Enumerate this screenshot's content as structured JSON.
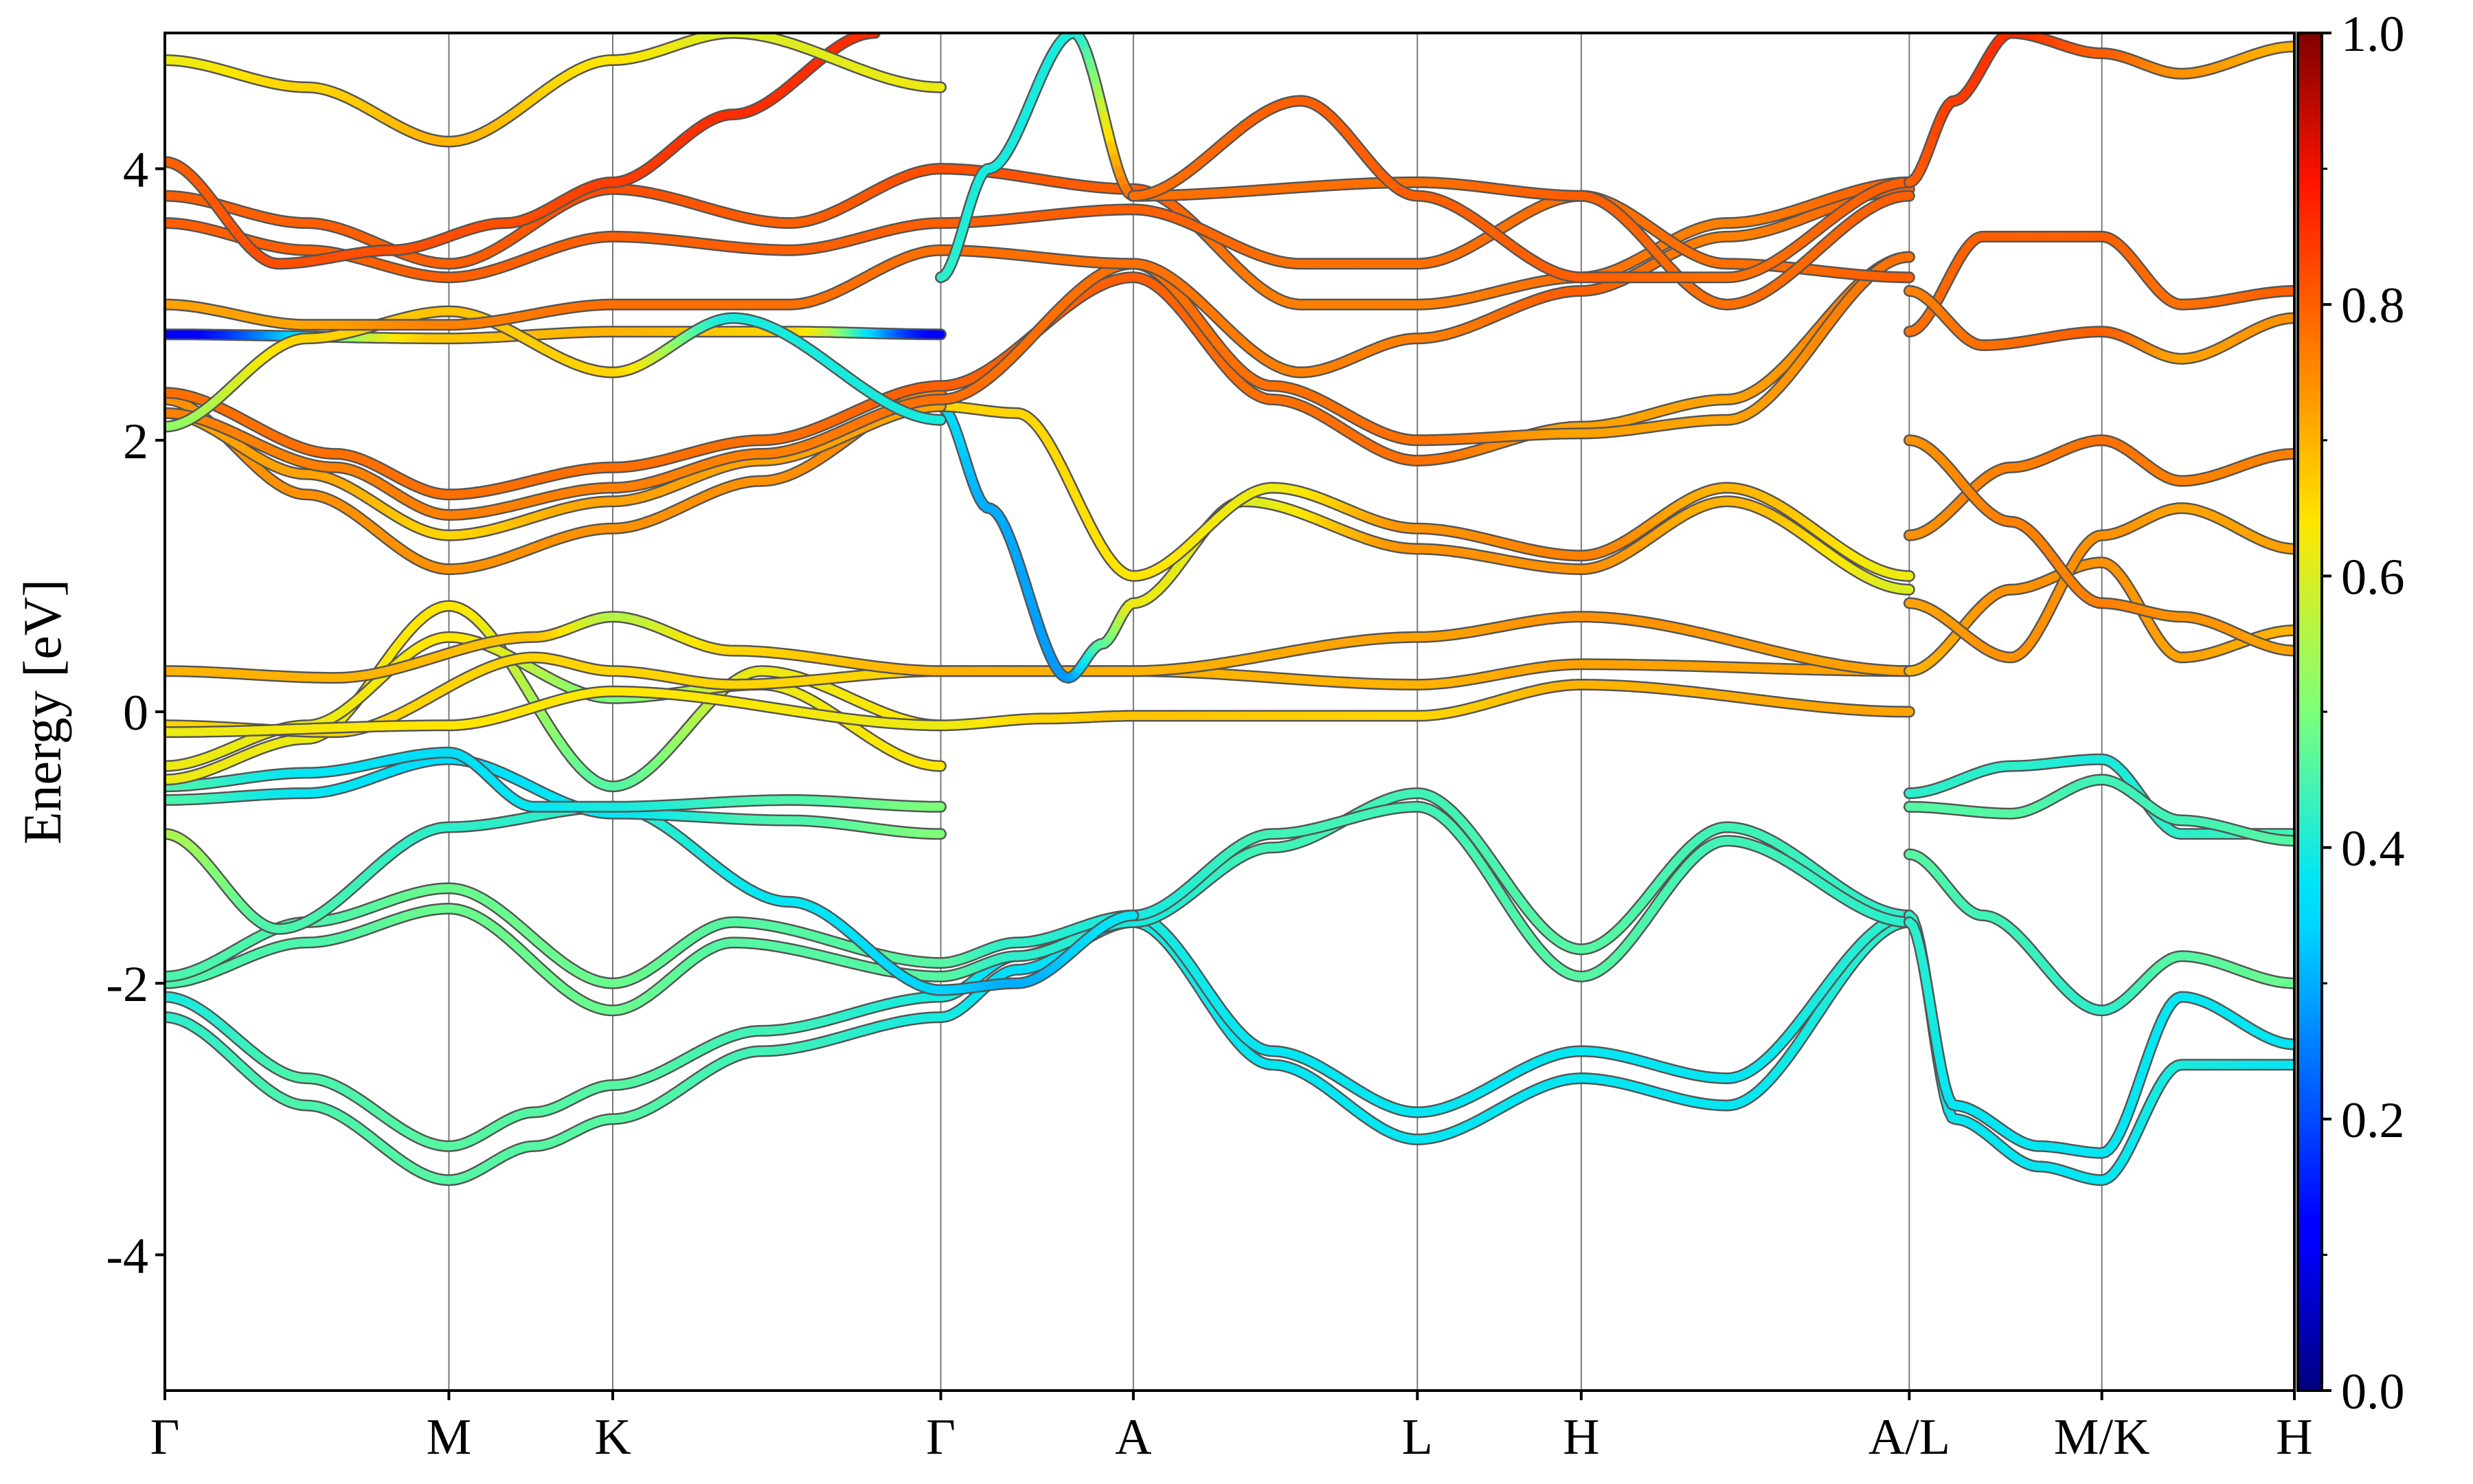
{
  "chart_data": {
    "type": "line",
    "ylabel": "Energy [eV]",
    "ylim": [
      -5,
      5
    ],
    "y_ticks": [
      -4,
      -2,
      0,
      2,
      4
    ],
    "y_tick_labels": [
      "-4",
      "-2",
      "0",
      "2",
      "4"
    ],
    "kpath": [
      {
        "label": "Γ",
        "x": 0.0
      },
      {
        "label": "M",
        "x": 1.0
      },
      {
        "label": "K",
        "x": 1.577
      },
      {
        "label": "Γ",
        "x": 2.732
      },
      {
        "label": "A",
        "x": 3.41
      },
      {
        "label": "L",
        "x": 4.41
      },
      {
        "label": "H",
        "x": 4.987
      },
      {
        "label": "A/L",
        "x": 6.142
      },
      {
        "label": "M/K",
        "x": 6.82
      },
      {
        "label": "H",
        "x": 7.498
      }
    ],
    "colorbar": {
      "colormap": "jet",
      "range": [
        0.0,
        1.0
      ],
      "ticks": [
        0.0,
        0.2,
        0.4,
        0.6,
        0.8,
        1.0
      ],
      "tick_labels": [
        "0.0",
        "0.2",
        "0.4",
        "0.6",
        "0.8",
        "1.0"
      ]
    },
    "grid": false,
    "bands": [
      {
        "x": [
          0.0,
          0.5,
          1.0,
          1.3,
          1.577,
          2.1,
          2.732,
          3.0,
          3.41,
          3.9,
          4.41,
          4.987,
          5.5,
          6.142
        ],
        "y": [
          -2.25,
          -2.9,
          -3.45,
          -3.2,
          -3.0,
          -2.5,
          -2.25,
          -1.9,
          -1.55,
          -2.6,
          -3.15,
          -2.7,
          -2.9,
          -1.55
        ],
        "w": [
          0.42,
          0.45,
          0.46,
          0.46,
          0.46,
          0.44,
          0.4,
          0.36,
          0.4,
          0.38,
          0.38,
          0.38,
          0.38,
          0.42
        ]
      },
      {
        "x": [
          0.0,
          0.5,
          1.0,
          1.3,
          1.577,
          2.1,
          2.732,
          3.0,
          3.41,
          3.9,
          4.41,
          4.987,
          5.5,
          6.142
        ],
        "y": [
          -2.1,
          -2.7,
          -3.2,
          -2.95,
          -2.75,
          -2.35,
          -2.1,
          -1.8,
          -1.5,
          -2.5,
          -2.95,
          -2.5,
          -2.7,
          -1.5
        ],
        "w": [
          0.4,
          0.45,
          0.46,
          0.46,
          0.46,
          0.44,
          0.4,
          0.36,
          0.4,
          0.38,
          0.38,
          0.38,
          0.38,
          0.42
        ]
      },
      {
        "x": [
          0.0,
          0.5,
          1.0,
          1.577,
          2.0,
          2.732,
          3.0,
          3.41,
          3.9,
          4.41,
          4.987,
          5.5,
          6.142
        ],
        "y": [
          -2.0,
          -1.7,
          -1.45,
          -2.2,
          -1.7,
          -1.95,
          -1.8,
          -1.55,
          -1.0,
          -0.6,
          -1.75,
          -0.85,
          -1.5
        ],
        "w": [
          0.45,
          0.45,
          0.48,
          0.48,
          0.46,
          0.46,
          0.42,
          0.4,
          0.44,
          0.44,
          0.46,
          0.44,
          0.42
        ]
      },
      {
        "x": [
          0.0,
          0.5,
          1.0,
          1.577,
          2.0,
          2.732,
          3.0,
          3.41,
          3.9,
          4.41,
          4.987,
          5.5,
          6.142
        ],
        "y": [
          -1.95,
          -1.55,
          -1.3,
          -2.0,
          -1.55,
          -1.85,
          -1.7,
          -1.5,
          -0.9,
          -0.7,
          -1.95,
          -0.95,
          -1.55
        ],
        "w": [
          0.45,
          0.45,
          0.48,
          0.48,
          0.46,
          0.46,
          0.42,
          0.4,
          0.44,
          0.44,
          0.46,
          0.44,
          0.42
        ]
      },
      {
        "x": [
          0.0,
          0.4,
          1.0,
          1.577,
          2.2,
          2.732,
          3.0,
          3.41
        ],
        "y": [
          -0.9,
          -1.6,
          -0.85,
          -0.7,
          -1.4,
          -2.05,
          -2.0,
          -1.5
        ],
        "w": [
          0.55,
          0.45,
          0.42,
          0.42,
          0.38,
          0.34,
          0.3,
          0.38
        ]
      },
      {
        "x": [
          0.0,
          0.5,
          1.0,
          1.577,
          2.2,
          2.732
        ],
        "y": [
          -0.65,
          -0.6,
          -0.35,
          -0.75,
          -0.8,
          -0.9
        ],
        "w": [
          0.45,
          0.38,
          0.36,
          0.38,
          0.45,
          0.5
        ]
      },
      {
        "x": [
          0.0,
          0.5,
          1.0,
          1.3,
          1.577,
          2.2,
          2.732
        ],
        "y": [
          -0.55,
          -0.45,
          -0.3,
          -0.7,
          -0.7,
          -0.65,
          -0.7
        ],
        "w": [
          0.45,
          0.38,
          0.36,
          0.38,
          0.4,
          0.45,
          0.5
        ]
      },
      {
        "x": [
          0.0,
          0.5,
          1.0,
          1.577,
          2.1,
          2.732
        ],
        "y": [
          -0.5,
          -0.2,
          0.78,
          -0.55,
          0.3,
          -0.1
        ],
        "w": [
          0.62,
          0.62,
          0.64,
          0.46,
          0.62,
          0.64
        ]
      },
      {
        "x": [
          0.0,
          0.5,
          1.0,
          1.577,
          2.1,
          2.732
        ],
        "y": [
          -0.4,
          -0.1,
          0.55,
          0.1,
          0.2,
          -0.4
        ],
        "w": [
          0.62,
          0.62,
          0.64,
          0.5,
          0.62,
          0.64
        ]
      },
      {
        "x": [
          0.0,
          0.6,
          1.3,
          1.577,
          2.0,
          2.732,
          3.1,
          3.41,
          4.41,
          4.987,
          6.142
        ],
        "y": [
          -0.1,
          -0.15,
          0.4,
          0.3,
          0.2,
          0.3,
          0.3,
          0.3,
          0.2,
          0.35,
          0.3
        ],
        "w": [
          0.66,
          0.66,
          0.66,
          0.66,
          0.66,
          0.66,
          0.7,
          0.7,
          0.7,
          0.72,
          0.72
        ]
      },
      {
        "x": [
          0.0,
          0.6,
          1.3,
          1.577,
          2.0,
          2.732,
          3.1,
          3.41,
          4.41,
          4.987,
          6.142
        ],
        "y": [
          0.3,
          0.25,
          0.55,
          0.7,
          0.45,
          0.3,
          0.3,
          0.3,
          0.55,
          0.7,
          0.3
        ],
        "w": [
          0.7,
          0.7,
          0.68,
          0.56,
          0.66,
          0.7,
          0.7,
          0.7,
          0.72,
          0.74,
          0.72
        ]
      },
      {
        "x": [
          0.0,
          1.0,
          1.577,
          2.732,
          3.1,
          3.41,
          4.41,
          4.987,
          6.142
        ],
        "y": [
          -0.15,
          -0.1,
          0.15,
          -0.1,
          -0.05,
          -0.03,
          -0.03,
          0.2,
          0.0
        ],
        "w": [
          0.62,
          0.64,
          0.64,
          0.62,
          0.66,
          0.68,
          0.66,
          0.7,
          0.72
        ]
      },
      {
        "x": [
          2.732,
          2.9,
          3.18,
          3.3,
          3.41,
          3.8,
          4.41,
          4.987,
          5.5,
          6.142
        ],
        "y": [
          2.25,
          1.5,
          0.25,
          0.5,
          0.8,
          1.55,
          1.2,
          1.05,
          1.55,
          0.9
        ],
        "w": [
          0.36,
          0.3,
          0.28,
          0.46,
          0.62,
          0.6,
          0.74,
          0.74,
          0.7,
          0.6
        ]
      },
      {
        "x": [
          2.732,
          3.0,
          3.41,
          3.9,
          4.41,
          4.987,
          5.5,
          6.142
        ],
        "y": [
          2.25,
          2.2,
          1.0,
          1.65,
          1.35,
          1.15,
          1.65,
          1.0
        ],
        "w": [
          0.66,
          0.66,
          0.64,
          0.62,
          0.74,
          0.76,
          0.7,
          0.62
        ]
      },
      {
        "x": [
          0.0,
          0.5,
          1.0,
          1.577,
          2.1,
          2.732
        ],
        "y": [
          2.3,
          1.6,
          1.05,
          1.35,
          1.7,
          2.35
        ],
        "w": [
          0.74,
          0.74,
          0.74,
          0.74,
          0.74,
          0.76
        ]
      },
      {
        "x": [
          0.0,
          0.5,
          1.0,
          1.577,
          2.1,
          2.732
        ],
        "y": [
          2.2,
          1.75,
          1.3,
          1.55,
          1.85,
          2.25
        ],
        "w": [
          0.72,
          0.72,
          0.66,
          0.72,
          0.72,
          0.72
        ]
      },
      {
        "x": [
          0.0,
          0.6,
          1.0,
          1.577,
          2.1,
          2.732,
          3.41,
          3.9,
          4.41,
          4.987,
          5.5,
          6.142
        ],
        "y": [
          2.35,
          1.9,
          1.6,
          1.8,
          2.0,
          2.4,
          3.2,
          2.3,
          1.85,
          2.1,
          2.3,
          3.35
        ],
        "w": [
          0.78,
          0.78,
          0.78,
          0.78,
          0.78,
          0.8,
          0.8,
          0.78,
          0.78,
          0.72,
          0.72,
          0.78
        ]
      },
      {
        "x": [
          0.0,
          0.6,
          1.0,
          1.577,
          2.1,
          2.732,
          3.41,
          3.9,
          4.41,
          4.987,
          5.5,
          6.142
        ],
        "y": [
          2.2,
          1.8,
          1.45,
          1.65,
          1.9,
          2.3,
          3.3,
          2.4,
          2.0,
          2.05,
          2.15,
          3.35
        ],
        "w": [
          0.76,
          0.76,
          0.76,
          0.76,
          0.76,
          0.78,
          0.78,
          0.78,
          0.78,
          0.72,
          0.72,
          0.78
        ]
      },
      {
        "x": [
          0.0,
          1.0,
          1.577,
          2.2,
          2.732
        ],
        "y": [
          2.78,
          2.75,
          2.8,
          2.8,
          2.78
        ],
        "w": [
          0.1,
          0.68,
          0.7,
          0.66,
          0.12
        ]
      },
      {
        "x": [
          0.0,
          0.5,
          1.0,
          1.577,
          2.0,
          2.732
        ],
        "y": [
          2.1,
          2.75,
          2.95,
          2.5,
          2.9,
          2.15
        ],
        "w": [
          0.52,
          0.66,
          0.68,
          0.66,
          0.4,
          0.4
        ]
      },
      {
        "x": [
          0.0,
          0.5,
          1.0,
          1.577,
          2.2,
          2.732,
          3.41,
          4.0,
          4.41,
          4.987,
          5.5,
          6.142
        ],
        "y": [
          3.0,
          2.85,
          2.85,
          3.0,
          3.0,
          3.4,
          3.3,
          2.5,
          2.75,
          3.1,
          3.5,
          3.85
        ],
        "w": [
          0.72,
          0.72,
          0.76,
          0.78,
          0.78,
          0.78,
          0.78,
          0.76,
          0.76,
          0.8,
          0.76,
          0.8
        ]
      },
      {
        "x": [
          0.0,
          0.5,
          1.0,
          1.577,
          2.2,
          2.732,
          3.41,
          4.0,
          4.41,
          4.987,
          5.5,
          6.142
        ],
        "y": [
          3.8,
          3.6,
          3.3,
          3.85,
          3.6,
          4.0,
          3.85,
          3.0,
          3.0,
          3.2,
          3.6,
          3.9
        ],
        "w": [
          0.8,
          0.8,
          0.8,
          0.82,
          0.8,
          0.82,
          0.8,
          0.76,
          0.76,
          0.78,
          0.76,
          0.8
        ]
      },
      {
        "x": [
          0.0,
          0.5,
          1.0,
          1.577,
          2.2,
          2.732,
          3.41,
          4.0,
          4.41,
          4.987,
          5.5,
          6.142
        ],
        "y": [
          3.6,
          3.4,
          3.2,
          3.5,
          3.4,
          3.6,
          3.7,
          3.3,
          3.3,
          3.8,
          3.3,
          3.2
        ],
        "w": [
          0.8,
          0.8,
          0.8,
          0.8,
          0.8,
          0.8,
          0.8,
          0.78,
          0.78,
          0.78,
          0.78,
          0.8
        ]
      },
      {
        "x": [
          0.0,
          0.4,
          0.8,
          1.2,
          1.577,
          2.0,
          2.5
        ],
        "y": [
          4.05,
          3.3,
          3.4,
          3.6,
          3.9,
          4.4,
          5.0
        ],
        "w": [
          0.8,
          0.82,
          0.82,
          0.82,
          0.84,
          0.86,
          0.86
        ]
      },
      {
        "x": [
          2.732,
          2.9,
          3.2,
          3.41,
          4.41,
          4.987,
          5.5,
          6.142
        ],
        "y": [
          3.2,
          4.0,
          5.0,
          3.8,
          3.9,
          3.8,
          3.0,
          3.8
        ],
        "w": [
          0.42,
          0.4,
          0.4,
          0.78,
          0.78,
          0.8,
          0.78,
          0.8
        ]
      },
      {
        "x": [
          3.41,
          4.0,
          4.41,
          4.987,
          5.5,
          6.142
        ],
        "y": [
          3.8,
          4.5,
          3.8,
          3.2,
          3.2,
          3.9
        ],
        "w": [
          0.78,
          0.8,
          0.8,
          0.8,
          0.78,
          0.8
        ]
      },
      {
        "x": [
          0.0,
          0.5,
          1.0,
          1.577,
          2.0,
          2.732
        ],
        "y": [
          4.8,
          4.6,
          4.2,
          4.8,
          5.0,
          4.6
        ],
        "w": [
          0.62,
          0.66,
          0.7,
          0.64,
          0.6,
          0.62
        ]
      },
      {
        "x": [
          6.142,
          6.3,
          6.6,
          6.82,
          7.1,
          7.498
        ],
        "y": [
          -1.5,
          -3.0,
          -3.35,
          -3.45,
          -2.6,
          -2.6
        ],
        "w": [
          0.42,
          0.38,
          0.38,
          0.38,
          0.4,
          0.38
        ]
      },
      {
        "x": [
          6.142,
          6.3,
          6.6,
          6.82,
          7.1,
          7.498
        ],
        "y": [
          -1.55,
          -2.9,
          -3.2,
          -3.25,
          -2.1,
          -2.45
        ],
        "w": [
          0.42,
          0.38,
          0.38,
          0.38,
          0.38,
          0.38
        ]
      },
      {
        "x": [
          6.142,
          6.5,
          6.82,
          7.1,
          7.498
        ],
        "y": [
          -0.6,
          -0.4,
          -0.35,
          -0.9,
          -0.9
        ],
        "w": [
          0.42,
          0.42,
          0.4,
          0.42,
          0.44
        ]
      },
      {
        "x": [
          6.142,
          6.5,
          6.82,
          7.1,
          7.498
        ],
        "y": [
          -0.7,
          -0.75,
          -0.5,
          -0.8,
          -0.95
        ],
        "w": [
          0.46,
          0.46,
          0.44,
          0.44,
          0.46
        ]
      },
      {
        "x": [
          6.142,
          6.4,
          6.82,
          7.1,
          7.498
        ],
        "y": [
          -1.05,
          -1.5,
          -2.2,
          -1.8,
          -2.0
        ],
        "w": [
          0.46,
          0.44,
          0.42,
          0.46,
          0.48
        ]
      },
      {
        "x": [
          6.142,
          6.5,
          6.82,
          7.1,
          7.498
        ],
        "y": [
          0.3,
          0.9,
          1.1,
          0.4,
          0.6
        ],
        "w": [
          0.7,
          0.74,
          0.74,
          0.72,
          0.7
        ]
      },
      {
        "x": [
          6.142,
          6.5,
          6.82,
          7.1,
          7.498
        ],
        "y": [
          0.8,
          0.4,
          1.3,
          1.5,
          1.2
        ],
        "w": [
          0.72,
          0.74,
          0.74,
          0.72,
          0.72
        ]
      },
      {
        "x": [
          6.142,
          6.5,
          6.82,
          7.1,
          7.498
        ],
        "y": [
          1.3,
          1.8,
          2.0,
          1.7,
          1.9
        ],
        "w": [
          0.74,
          0.76,
          0.78,
          0.76,
          0.76
        ]
      },
      {
        "x": [
          6.142,
          6.5,
          6.82,
          7.1,
          7.498
        ],
        "y": [
          2.0,
          1.4,
          0.8,
          0.7,
          0.45
        ],
        "w": [
          0.74,
          0.76,
          0.76,
          0.74,
          0.72
        ]
      },
      {
        "x": [
          6.142,
          6.4,
          6.82,
          7.1,
          7.498
        ],
        "y": [
          2.8,
          3.5,
          3.5,
          3.0,
          3.1
        ],
        "w": [
          0.78,
          0.8,
          0.8,
          0.78,
          0.8
        ]
      },
      {
        "x": [
          6.142,
          6.4,
          6.82,
          7.1,
          7.498
        ],
        "y": [
          3.1,
          2.7,
          2.8,
          2.6,
          2.9
        ],
        "w": [
          0.76,
          0.78,
          0.8,
          0.72,
          0.74
        ]
      },
      {
        "x": [
          6.142,
          6.3,
          6.5,
          6.82,
          7.1,
          7.498
        ],
        "y": [
          3.9,
          4.5,
          5.0,
          4.85,
          4.7,
          4.9
        ],
        "w": [
          0.8,
          0.84,
          0.86,
          0.8,
          0.74,
          0.7
        ]
      }
    ]
  }
}
